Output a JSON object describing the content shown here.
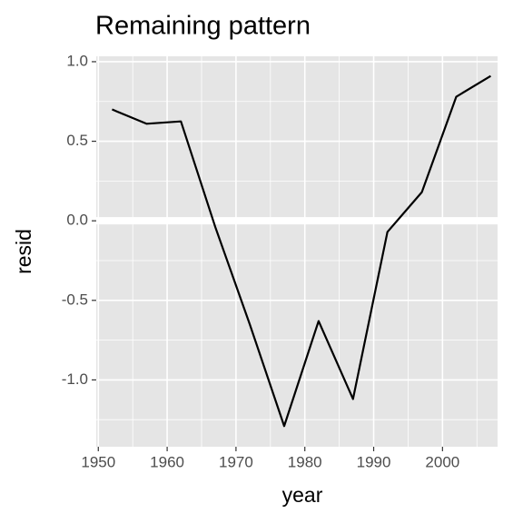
{
  "chart_data": {
    "type": "line",
    "title": "Remaining pattern",
    "x_label": "year",
    "y_label": "resid",
    "x": [
      1952,
      1957,
      1962,
      1967,
      1972,
      1977,
      1982,
      1987,
      1992,
      1997,
      2002,
      2007
    ],
    "series": [
      {
        "color": "#000000",
        "values": [
          0.7,
          0.61,
          0.625,
          -0.04,
          -0.65,
          -1.29,
          -0.63,
          -1.12,
          -0.07,
          0.18,
          0.78,
          0.91
        ]
      }
    ],
    "xlim": [
      1949.7,
      2008.0
    ],
    "ylim": [
      -1.42,
      1.034
    ],
    "xticks": [
      1950,
      1960,
      1970,
      1980,
      1990,
      2000
    ],
    "yticks": [
      {
        "value": -1,
        "label": "-1.0"
      },
      {
        "value": -0.5,
        "label": "-0.5"
      },
      {
        "value": 0,
        "label": "0.0"
      },
      {
        "value": 0.5,
        "label": "0.5"
      },
      {
        "value": 1,
        "label": "1.0"
      }
    ],
    "minor_xticks": [
      1955,
      1965,
      1975,
      1985,
      1995,
      2005
    ],
    "minor_yticks": [
      -1.25,
      -0.75,
      -0.25,
      0.25,
      0.75
    ],
    "grid": true,
    "hline": 0,
    "hline_color": "#ffffff",
    "panel_color": "#e5e5e5"
  }
}
